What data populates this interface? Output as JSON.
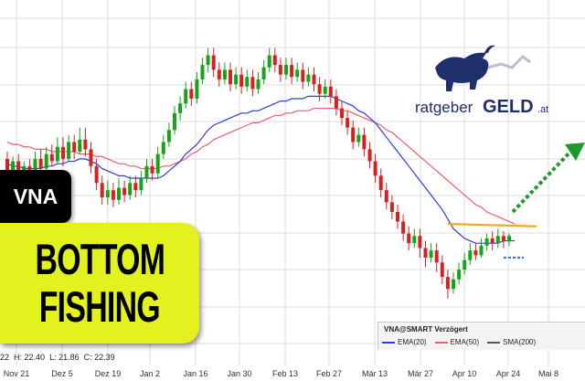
{
  "colors": {
    "up": "#18a318",
    "down": "#d42222",
    "ema20": "#2b3fd4",
    "ema50": "#e8606a",
    "resistance": "#f5a623",
    "support": "#3a7be0",
    "arrow": "#1f9a2a",
    "grid": "#dcdcdc",
    "badge_yellow": "#e3f21c"
  },
  "overlay": {
    "ticker": "VNA",
    "headline_1": "BOTTOM",
    "headline_2": "FISHING"
  },
  "ohlc": {
    "prefix": "22",
    "high_label": "H: 22.40",
    "low_label": "L: 21.86",
    "close_label": "C: 22.39"
  },
  "logo": {
    "word_1": "ratgeber",
    "word_2": "GELD",
    "suffix": ".at",
    "icon": "bull-icon"
  },
  "legend": {
    "title": "VNA@SMART Verzögert",
    "items": [
      {
        "label": "EMA(20)",
        "color": "#2b3fd4"
      },
      {
        "label": "EMA(50)",
        "color": "#e8606a"
      },
      {
        "label": "SMA(200)",
        "color": "#555555"
      }
    ]
  },
  "chart_data": {
    "type": "candlestick",
    "x_tick_labels": [
      "Nov 21",
      "Dez 5",
      "Dez 19",
      "Jan 2",
      "Jan 16",
      "Jan 30",
      "Feb 13",
      "Feb 27",
      "Mär 13",
      "Mär 27",
      "Apr 10",
      "Apr 24",
      "Mai 8"
    ],
    "grid": "on",
    "candles": [
      {
        "o": 153,
        "c": 148,
        "h": 156,
        "l": 146
      },
      {
        "o": 148,
        "c": 152,
        "h": 154,
        "l": 145
      },
      {
        "o": 152,
        "c": 146,
        "h": 155,
        "l": 143
      },
      {
        "o": 146,
        "c": 150,
        "h": 152,
        "l": 144
      },
      {
        "o": 150,
        "c": 147,
        "h": 153,
        "l": 145
      },
      {
        "o": 147,
        "c": 153,
        "h": 156,
        "l": 146
      },
      {
        "o": 153,
        "c": 149,
        "h": 157,
        "l": 147
      },
      {
        "o": 149,
        "c": 155,
        "h": 158,
        "l": 148
      },
      {
        "o": 155,
        "c": 152,
        "h": 159,
        "l": 150
      },
      {
        "o": 152,
        "c": 158,
        "h": 162,
        "l": 151
      },
      {
        "o": 158,
        "c": 153,
        "h": 162,
        "l": 150
      },
      {
        "o": 153,
        "c": 160,
        "h": 163,
        "l": 152
      },
      {
        "o": 160,
        "c": 156,
        "h": 163,
        "l": 153
      },
      {
        "o": 156,
        "c": 161,
        "h": 166,
        "l": 155
      },
      {
        "o": 161,
        "c": 157,
        "h": 166,
        "l": 154
      },
      {
        "o": 157,
        "c": 150,
        "h": 160,
        "l": 147
      },
      {
        "o": 150,
        "c": 143,
        "h": 153,
        "l": 140
      },
      {
        "o": 143,
        "c": 137,
        "h": 146,
        "l": 134
      },
      {
        "o": 137,
        "c": 140,
        "h": 144,
        "l": 134
      },
      {
        "o": 140,
        "c": 136,
        "h": 143,
        "l": 133
      },
      {
        "o": 136,
        "c": 141,
        "h": 145,
        "l": 134
      },
      {
        "o": 141,
        "c": 138,
        "h": 144,
        "l": 135
      },
      {
        "o": 138,
        "c": 143,
        "h": 146,
        "l": 136
      },
      {
        "o": 143,
        "c": 140,
        "h": 146,
        "l": 137
      },
      {
        "o": 140,
        "c": 145,
        "h": 148,
        "l": 138
      },
      {
        "o": 145,
        "c": 150,
        "h": 153,
        "l": 143
      },
      {
        "o": 150,
        "c": 147,
        "h": 153,
        "l": 144
      },
      {
        "o": 147,
        "c": 155,
        "h": 158,
        "l": 145
      },
      {
        "o": 155,
        "c": 160,
        "h": 163,
        "l": 153
      },
      {
        "o": 160,
        "c": 165,
        "h": 168,
        "l": 158
      },
      {
        "o": 165,
        "c": 172,
        "h": 175,
        "l": 163
      },
      {
        "o": 172,
        "c": 176,
        "h": 179,
        "l": 169
      },
      {
        "o": 176,
        "c": 182,
        "h": 185,
        "l": 174
      },
      {
        "o": 182,
        "c": 178,
        "h": 185,
        "l": 175
      },
      {
        "o": 178,
        "c": 186,
        "h": 189,
        "l": 176
      },
      {
        "o": 186,
        "c": 192,
        "h": 195,
        "l": 184
      },
      {
        "o": 192,
        "c": 196,
        "h": 199,
        "l": 189
      },
      {
        "o": 196,
        "c": 190,
        "h": 199,
        "l": 187
      },
      {
        "o": 190,
        "c": 186,
        "h": 193,
        "l": 183
      },
      {
        "o": 186,
        "c": 190,
        "h": 193,
        "l": 184
      },
      {
        "o": 190,
        "c": 184,
        "h": 193,
        "l": 181
      },
      {
        "o": 184,
        "c": 188,
        "h": 191,
        "l": 182
      },
      {
        "o": 188,
        "c": 183,
        "h": 191,
        "l": 180
      },
      {
        "o": 183,
        "c": 187,
        "h": 190,
        "l": 181
      },
      {
        "o": 187,
        "c": 182,
        "h": 190,
        "l": 179
      },
      {
        "o": 182,
        "c": 186,
        "h": 189,
        "l": 180
      },
      {
        "o": 186,
        "c": 191,
        "h": 194,
        "l": 184
      },
      {
        "o": 191,
        "c": 196,
        "h": 199,
        "l": 189
      },
      {
        "o": 196,
        "c": 192,
        "h": 199,
        "l": 189
      },
      {
        "o": 192,
        "c": 188,
        "h": 195,
        "l": 185
      },
      {
        "o": 188,
        "c": 192,
        "h": 195,
        "l": 186
      },
      {
        "o": 192,
        "c": 187,
        "h": 195,
        "l": 184
      },
      {
        "o": 187,
        "c": 190,
        "h": 193,
        "l": 185
      },
      {
        "o": 190,
        "c": 185,
        "h": 193,
        "l": 182
      },
      {
        "o": 185,
        "c": 188,
        "h": 191,
        "l": 183
      },
      {
        "o": 188,
        "c": 184,
        "h": 191,
        "l": 181
      },
      {
        "o": 184,
        "c": 180,
        "h": 187,
        "l": 177
      },
      {
        "o": 180,
        "c": 183,
        "h": 186,
        "l": 178
      },
      {
        "o": 183,
        "c": 179,
        "h": 186,
        "l": 176
      },
      {
        "o": 179,
        "c": 174,
        "h": 182,
        "l": 171
      },
      {
        "o": 174,
        "c": 170,
        "h": 177,
        "l": 167
      },
      {
        "o": 170,
        "c": 166,
        "h": 173,
        "l": 163
      },
      {
        "o": 166,
        "c": 160,
        "h": 169,
        "l": 157
      },
      {
        "o": 160,
        "c": 163,
        "h": 166,
        "l": 158
      },
      {
        "o": 163,
        "c": 157,
        "h": 166,
        "l": 154
      },
      {
        "o": 157,
        "c": 152,
        "h": 160,
        "l": 149
      },
      {
        "o": 152,
        "c": 146,
        "h": 155,
        "l": 143
      },
      {
        "o": 146,
        "c": 140,
        "h": 149,
        "l": 137
      },
      {
        "o": 140,
        "c": 135,
        "h": 143,
        "l": 132
      },
      {
        "o": 135,
        "c": 131,
        "h": 138,
        "l": 128
      },
      {
        "o": 131,
        "c": 127,
        "h": 134,
        "l": 124
      },
      {
        "o": 127,
        "c": 122,
        "h": 130,
        "l": 119
      },
      {
        "o": 122,
        "c": 118,
        "h": 125,
        "l": 115
      },
      {
        "o": 118,
        "c": 121,
        "h": 124,
        "l": 116
      },
      {
        "o": 121,
        "c": 116,
        "h": 124,
        "l": 112
      },
      {
        "o": 116,
        "c": 112,
        "h": 119,
        "l": 108
      },
      {
        "o": 112,
        "c": 115,
        "h": 118,
        "l": 110
      },
      {
        "o": 115,
        "c": 110,
        "h": 118,
        "l": 106
      },
      {
        "o": 110,
        "c": 104,
        "h": 113,
        "l": 101
      },
      {
        "o": 104,
        "c": 99,
        "h": 107,
        "l": 95
      },
      {
        "o": 99,
        "c": 103,
        "h": 106,
        "l": 97
      },
      {
        "o": 103,
        "c": 107,
        "h": 110,
        "l": 101
      },
      {
        "o": 107,
        "c": 111,
        "h": 114,
        "l": 105
      },
      {
        "o": 111,
        "c": 115,
        "h": 118,
        "l": 109
      },
      {
        "o": 115,
        "c": 113,
        "h": 118,
        "l": 111
      },
      {
        "o": 113,
        "c": 117,
        "h": 120,
        "l": 112
      },
      {
        "o": 117,
        "c": 120,
        "h": 122,
        "l": 115
      },
      {
        "o": 120,
        "c": 118,
        "h": 123,
        "l": 115
      },
      {
        "o": 118,
        "c": 121,
        "h": 124,
        "l": 116
      },
      {
        "o": 121,
        "c": 119,
        "h": 123,
        "l": 116
      },
      {
        "o": 119,
        "c": 121,
        "h": 122,
        "l": 117
      }
    ],
    "ema20": [
      151,
      150,
      150,
      149,
      149,
      149,
      149,
      150,
      150,
      151,
      151,
      152,
      152,
      153,
      153,
      152,
      151,
      149,
      148,
      147,
      146,
      146,
      145,
      145,
      145,
      145,
      145,
      145,
      146,
      148,
      150,
      152,
      155,
      157,
      159,
      162,
      165,
      167,
      168,
      169,
      170,
      171,
      172,
      172,
      173,
      173,
      174,
      175,
      176,
      177,
      177,
      178,
      178,
      178,
      179,
      179,
      179,
      179,
      179,
      178,
      177,
      176,
      175,
      173,
      172,
      170,
      168,
      165,
      162,
      159,
      156,
      153,
      150,
      147,
      144,
      141,
      138,
      135,
      132,
      128,
      124,
      122,
      120,
      119,
      118,
      118,
      118,
      118,
      118,
      119,
      119,
      119
    ],
    "ema50": [
      160,
      159,
      159,
      158,
      158,
      157,
      157,
      157,
      156,
      156,
      156,
      156,
      156,
      155,
      155,
      155,
      154,
      154,
      153,
      152,
      151,
      151,
      150,
      150,
      149,
      149,
      149,
      149,
      150,
      150,
      151,
      152,
      153,
      155,
      156,
      158,
      159,
      161,
      162,
      163,
      164,
      165,
      166,
      167,
      168,
      168,
      169,
      170,
      171,
      171,
      172,
      172,
      173,
      173,
      173,
      174,
      174,
      174,
      174,
      174,
      173,
      173,
      172,
      171,
      170,
      169,
      168,
      167,
      165,
      164,
      162,
      160,
      158,
      156,
      154,
      152,
      150,
      148,
      146,
      144,
      142,
      140,
      138,
      136,
      134,
      133,
      131,
      130,
      129,
      128,
      127,
      126
    ]
  }
}
